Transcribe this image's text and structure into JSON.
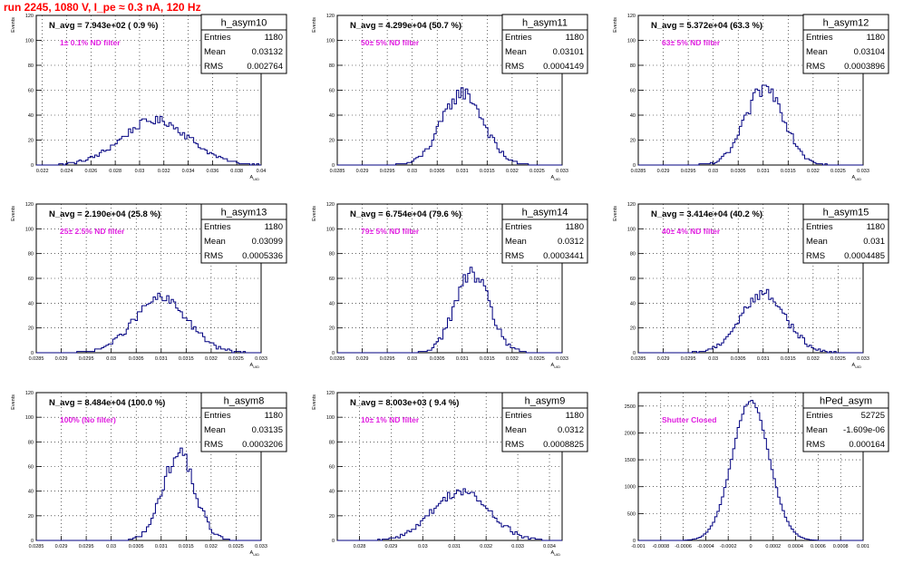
{
  "page": {
    "title": "run 2245,  1080 V, I_pe ≈ 0.3 nA, 120 Hz"
  },
  "stat_labels": {
    "entries": "Entries",
    "mean": "Mean",
    "rms": "RMS"
  },
  "colors": {
    "hist": "#000080",
    "title": "#ff0000",
    "filter_text": "#e020e0",
    "axis": "#000000"
  },
  "chart_data": [
    {
      "type": "histogram",
      "name": "h_asym10",
      "entries": "1180",
      "mean": "0.03132",
      "rms": "0.002764",
      "navg": "N_avg = 7.943e+02 ( 0.9 %)",
      "filter": "1± 0.1% ND filter",
      "xlabel": "A_UID",
      "ylabel": "Events",
      "xlim": [
        0.0215,
        0.04
      ],
      "ylim": [
        0,
        120
      ],
      "xticks": [
        0.022,
        0.024,
        0.026,
        0.028,
        0.03,
        0.032,
        0.034,
        0.036,
        0.038,
        0.04
      ],
      "xtick_labels": [
        "0.022",
        "0.024",
        "0.026",
        "0.028",
        "0.03",
        "0.032",
        "0.034",
        "0.036",
        "0.038",
        "0.04"
      ],
      "yticks": [
        0,
        20,
        40,
        60,
        80,
        100,
        120
      ],
      "ytick_labels": [
        "0",
        "20",
        "40",
        "60",
        "80",
        "100",
        "120"
      ],
      "grid": true,
      "mu": 0.03132,
      "sigma": 0.002764,
      "peak": 36
    },
    {
      "type": "histogram",
      "name": "h_asym11",
      "entries": "1180",
      "mean": "0.03101",
      "rms": "0.0004149",
      "navg": "N_avg = 4.299e+04 (50.7 %)",
      "filter": "50± 5% ND filter",
      "xlabel": "A_UID",
      "ylabel": "Events",
      "xlim": [
        0.0285,
        0.033
      ],
      "ylim": [
        0,
        120
      ],
      "xticks": [
        0.0285,
        0.029,
        0.0295,
        0.03,
        0.0305,
        0.031,
        0.0315,
        0.032,
        0.0325,
        0.033
      ],
      "xtick_labels": [
        "0.0285",
        "0.029",
        "0.0295",
        "0.03",
        "0.0305",
        "0.031",
        "0.0315",
        "0.032",
        "0.0325",
        "0.033"
      ],
      "yticks": [
        0,
        20,
        40,
        60,
        80,
        100,
        120
      ],
      "ytick_labels": [
        "0",
        "20",
        "40",
        "60",
        "80",
        "100",
        "120"
      ],
      "grid": true,
      "mu": 0.03101,
      "sigma": 0.0004149,
      "peak": 58
    },
    {
      "type": "histogram",
      "name": "h_asym12",
      "entries": "1180",
      "mean": "0.03104",
      "rms": "0.0003896",
      "navg": "N_avg = 5.372e+04 (63.3 %)",
      "filter": "63± 5% ND filter",
      "xlabel": "A_UID",
      "ylabel": "Events",
      "xlim": [
        0.0285,
        0.033
      ],
      "ylim": [
        0,
        120
      ],
      "xticks": [
        0.0285,
        0.029,
        0.0295,
        0.03,
        0.0305,
        0.031,
        0.0315,
        0.032,
        0.0325,
        0.033
      ],
      "xtick_labels": [
        "0.0285",
        "0.029",
        "0.0295",
        "0.03",
        "0.0305",
        "0.031",
        "0.0315",
        "0.032",
        "0.0325",
        "0.033"
      ],
      "yticks": [
        0,
        20,
        40,
        60,
        80,
        100,
        120
      ],
      "ytick_labels": [
        "0",
        "20",
        "40",
        "60",
        "80",
        "100",
        "120"
      ],
      "grid": true,
      "mu": 0.03104,
      "sigma": 0.0003896,
      "peak": 62
    },
    {
      "type": "histogram",
      "name": "h_asym13",
      "entries": "1180",
      "mean": "0.03099",
      "rms": "0.0005336",
      "navg": "N_avg = 2.190e+04 (25.8 %)",
      "filter": "25± 2.5% ND filter",
      "xlabel": "A_UID",
      "ylabel": "Events",
      "xlim": [
        0.0285,
        0.033
      ],
      "ylim": [
        0,
        120
      ],
      "xticks": [
        0.0285,
        0.029,
        0.0295,
        0.03,
        0.0305,
        0.031,
        0.0315,
        0.032,
        0.0325,
        0.033
      ],
      "xtick_labels": [
        "0.0285",
        "0.029",
        "0.0295",
        "0.03",
        "0.0305",
        "0.031",
        "0.0315",
        "0.032",
        "0.0325",
        "0.033"
      ],
      "yticks": [
        0,
        20,
        40,
        60,
        80,
        100,
        120
      ],
      "ytick_labels": [
        "0",
        "20",
        "40",
        "60",
        "80",
        "100",
        "120"
      ],
      "grid": true,
      "mu": 0.03099,
      "sigma": 0.0005336,
      "peak": 44
    },
    {
      "type": "histogram",
      "name": "h_asym14",
      "entries": "1180",
      "mean": "0.0312",
      "rms": "0.0003441",
      "navg": "N_avg = 6.754e+04 (79.6 %)",
      "filter": "79± 5% ND filter",
      "xlabel": "A_UID",
      "ylabel": "Events",
      "xlim": [
        0.0285,
        0.033
      ],
      "ylim": [
        0,
        120
      ],
      "xticks": [
        0.0285,
        0.029,
        0.0295,
        0.03,
        0.0305,
        0.031,
        0.0315,
        0.032,
        0.0325,
        0.033
      ],
      "xtick_labels": [
        "0.0285",
        "0.029",
        "0.0295",
        "0.03",
        "0.0305",
        "0.031",
        "0.0315",
        "0.032",
        "0.0325",
        "0.033"
      ],
      "yticks": [
        0,
        20,
        40,
        60,
        80,
        100,
        120
      ],
      "ytick_labels": [
        "0",
        "20",
        "40",
        "60",
        "80",
        "100",
        "120"
      ],
      "grid": true,
      "mu": 0.0312,
      "sigma": 0.0003441,
      "peak": 64
    },
    {
      "type": "histogram",
      "name": "h_asym15",
      "entries": "1180",
      "mean": "0.031",
      "rms": "0.0004485",
      "navg": "N_avg = 3.414e+04 (40.2 %)",
      "filter": "40± 4% ND filter",
      "xlabel": "A_UID",
      "ylabel": "Events",
      "xlim": [
        0.0285,
        0.033
      ],
      "ylim": [
        0,
        120
      ],
      "xticks": [
        0.0285,
        0.029,
        0.0295,
        0.03,
        0.0305,
        0.031,
        0.0315,
        0.032,
        0.0325,
        0.033
      ],
      "xtick_labels": [
        "0.0285",
        "0.029",
        "0.0295",
        "0.03",
        "0.0305",
        "0.031",
        "0.0315",
        "0.032",
        "0.0325",
        "0.033"
      ],
      "yticks": [
        0,
        20,
        40,
        60,
        80,
        100,
        120
      ],
      "ytick_labels": [
        "0",
        "20",
        "40",
        "60",
        "80",
        "100",
        "120"
      ],
      "grid": true,
      "mu": 0.031,
      "sigma": 0.0004485,
      "peak": 48
    },
    {
      "type": "histogram",
      "name": "h_asym8",
      "entries": "1180",
      "mean": "0.03135",
      "rms": "0.0003206",
      "navg": "N_avg = 8.484e+04 (100.0 %)",
      "filter": "100% (No filter)",
      "xlabel": "A_UID",
      "ylabel": "Events",
      "xlim": [
        0.0285,
        0.033
      ],
      "ylim": [
        0,
        120
      ],
      "xticks": [
        0.0285,
        0.029,
        0.0295,
        0.03,
        0.0305,
        0.031,
        0.0315,
        0.032,
        0.0325,
        0.033
      ],
      "xtick_labels": [
        "0.0285",
        "0.029",
        "0.0295",
        "0.03",
        "0.0305",
        "0.031",
        "0.0315",
        "0.032",
        "0.0325",
        "0.033"
      ],
      "yticks": [
        0,
        20,
        40,
        60,
        80,
        100,
        120
      ],
      "ytick_labels": [
        "0",
        "20",
        "40",
        "60",
        "80",
        "100",
        "120"
      ],
      "grid": true,
      "mu": 0.03135,
      "sigma": 0.0003206,
      "peak": 70
    },
    {
      "type": "histogram",
      "name": "h_asym9",
      "entries": "1180",
      "mean": "0.0312",
      "rms": "0.0008825",
      "navg": "N_avg = 8.003e+03 ( 9.4 %)",
      "filter": "10± 1% ND filter",
      "xlabel": "A_UID",
      "ylabel": "Events",
      "xlim": [
        0.0273,
        0.0344
      ],
      "ylim": [
        0,
        120
      ],
      "xticks": [
        0.028,
        0.029,
        0.03,
        0.031,
        0.032,
        0.033,
        0.034
      ],
      "xtick_labels": [
        "0.028",
        "0.029",
        "0.03",
        "0.031",
        "0.032",
        "0.033",
        "0.034"
      ],
      "yticks": [
        0,
        20,
        40,
        60,
        80,
        100,
        120
      ],
      "ytick_labels": [
        "0",
        "20",
        "40",
        "60",
        "80",
        "100",
        "120"
      ],
      "grid": true,
      "mu": 0.0312,
      "sigma": 0.0008825,
      "peak": 40
    },
    {
      "type": "histogram",
      "name": "hPed_asym",
      "entries": "52725",
      "mean": "-1.609e-06",
      "rms": "0.000164",
      "navg": "",
      "filter": "Shutter Closed",
      "xlabel": "",
      "ylabel": "",
      "xlim": [
        -0.001,
        0.001
      ],
      "ylim": [
        0,
        2750
      ],
      "xticks": [
        -0.001,
        -0.0008,
        -0.0006,
        -0.0004,
        -0.0002,
        0,
        0.0002,
        0.0004,
        0.0006,
        0.0008,
        0.001
      ],
      "xtick_labels": [
        "-0.001",
        "-0.0008",
        "-0.0006",
        "-0.0004",
        "-0.0002",
        "0",
        "0.0002",
        "0.0004",
        "0.0006",
        "0.0008",
        "0.001"
      ],
      "yticks": [
        0,
        500,
        1000,
        1500,
        2000,
        2500
      ],
      "ytick_labels": [
        "0",
        "500",
        "1000",
        "1500",
        "2000",
        "2500"
      ],
      "grid": true,
      "mu": 0.0,
      "sigma": 0.000164,
      "peak": 2600
    }
  ]
}
